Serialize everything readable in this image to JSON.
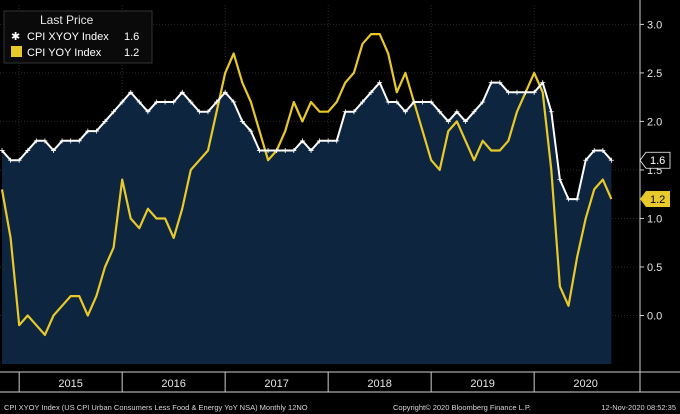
{
  "legend": {
    "title": "Last Price",
    "items": [
      {
        "name": "CPI XYOY Index",
        "value": "1.6"
      },
      {
        "name": "CPI YOY Index",
        "value": "1.2"
      }
    ]
  },
  "footer": {
    "source": "CPI XYOY Index (US CPI Urban Consumers Less Food & Energy YoY NSA)  Monthly 12NO",
    "copyright": "Copyright© 2020 Bloomberg Finance L.P.",
    "timestamp": "12-Nov-2020 08:52:35"
  },
  "chart_data": {
    "type": "line",
    "ylim": [
      -0.5,
      3.2
    ],
    "yticks": [
      "0.0",
      "0.5",
      "1.0",
      "1.5",
      "2.0",
      "2.5",
      "3.0"
    ],
    "xticks": [
      "2015",
      "2016",
      "2017",
      "2018",
      "2019",
      "2020"
    ],
    "series": [
      {
        "name": "CPI XYOY Index",
        "color": "#ffffff",
        "last_label": "1.6",
        "fill": "#0e2540",
        "x": [
          "2014-11",
          "2014-12",
          "2015-01",
          "2015-02",
          "2015-03",
          "2015-04",
          "2015-05",
          "2015-06",
          "2015-07",
          "2015-08",
          "2015-09",
          "2015-10",
          "2015-11",
          "2015-12",
          "2016-01",
          "2016-02",
          "2016-03",
          "2016-04",
          "2016-05",
          "2016-06",
          "2016-07",
          "2016-08",
          "2016-09",
          "2016-10",
          "2016-11",
          "2016-12",
          "2017-01",
          "2017-02",
          "2017-03",
          "2017-04",
          "2017-05",
          "2017-06",
          "2017-07",
          "2017-08",
          "2017-09",
          "2017-10",
          "2017-11",
          "2017-12",
          "2018-01",
          "2018-02",
          "2018-03",
          "2018-04",
          "2018-05",
          "2018-06",
          "2018-07",
          "2018-08",
          "2018-09",
          "2018-10",
          "2018-11",
          "2018-12",
          "2019-01",
          "2019-02",
          "2019-03",
          "2019-04",
          "2019-05",
          "2019-06",
          "2019-07",
          "2019-08",
          "2019-09",
          "2019-10",
          "2019-11",
          "2019-12",
          "2020-01",
          "2020-02",
          "2020-03",
          "2020-04",
          "2020-05",
          "2020-06",
          "2020-07",
          "2020-08",
          "2020-09",
          "2020-10"
        ],
        "values": [
          1.7,
          1.6,
          1.6,
          1.7,
          1.8,
          1.8,
          1.7,
          1.8,
          1.8,
          1.8,
          1.9,
          1.9,
          2.0,
          2.1,
          2.2,
          2.3,
          2.2,
          2.1,
          2.2,
          2.2,
          2.2,
          2.3,
          2.2,
          2.1,
          2.1,
          2.2,
          2.3,
          2.2,
          2.0,
          1.9,
          1.7,
          1.7,
          1.7,
          1.7,
          1.7,
          1.8,
          1.7,
          1.8,
          1.8,
          1.8,
          2.1,
          2.1,
          2.2,
          2.3,
          2.4,
          2.2,
          2.2,
          2.1,
          2.2,
          2.2,
          2.2,
          2.1,
          2.0,
          2.1,
          2.0,
          2.1,
          2.2,
          2.4,
          2.4,
          2.3,
          2.3,
          2.3,
          2.3,
          2.4,
          2.1,
          1.4,
          1.2,
          1.2,
          1.6,
          1.7,
          1.7,
          1.6
        ]
      },
      {
        "name": "CPI YOY Index",
        "color": "#e8c92a",
        "last_label": "1.2",
        "x": [
          "2014-11",
          "2014-12",
          "2015-01",
          "2015-02",
          "2015-03",
          "2015-04",
          "2015-05",
          "2015-06",
          "2015-07",
          "2015-08",
          "2015-09",
          "2015-10",
          "2015-11",
          "2015-12",
          "2016-01",
          "2016-02",
          "2016-03",
          "2016-04",
          "2016-05",
          "2016-06",
          "2016-07",
          "2016-08",
          "2016-09",
          "2016-10",
          "2016-11",
          "2016-12",
          "2017-01",
          "2017-02",
          "2017-03",
          "2017-04",
          "2017-05",
          "2017-06",
          "2017-07",
          "2017-08",
          "2017-09",
          "2017-10",
          "2017-11",
          "2017-12",
          "2018-01",
          "2018-02",
          "2018-03",
          "2018-04",
          "2018-05",
          "2018-06",
          "2018-07",
          "2018-08",
          "2018-09",
          "2018-10",
          "2018-11",
          "2018-12",
          "2019-01",
          "2019-02",
          "2019-03",
          "2019-04",
          "2019-05",
          "2019-06",
          "2019-07",
          "2019-08",
          "2019-09",
          "2019-10",
          "2019-11",
          "2019-12",
          "2020-01",
          "2020-02",
          "2020-03",
          "2020-04",
          "2020-05",
          "2020-06",
          "2020-07",
          "2020-08",
          "2020-09",
          "2020-10"
        ],
        "values": [
          1.3,
          0.8,
          -0.1,
          0.0,
          -0.1,
          -0.2,
          0.0,
          0.1,
          0.2,
          0.2,
          0.0,
          0.2,
          0.5,
          0.7,
          1.4,
          1.0,
          0.9,
          1.1,
          1.0,
          1.0,
          0.8,
          1.1,
          1.5,
          1.6,
          1.7,
          2.1,
          2.5,
          2.7,
          2.4,
          2.2,
          1.9,
          1.6,
          1.7,
          1.9,
          2.2,
          2.0,
          2.2,
          2.1,
          2.1,
          2.2,
          2.4,
          2.5,
          2.8,
          2.9,
          2.9,
          2.7,
          2.3,
          2.5,
          2.2,
          1.9,
          1.6,
          1.5,
          1.9,
          2.0,
          1.8,
          1.6,
          1.8,
          1.7,
          1.7,
          1.8,
          2.1,
          2.3,
          2.5,
          2.3,
          1.5,
          0.3,
          0.1,
          0.6,
          1.0,
          1.3,
          1.4,
          1.2
        ]
      }
    ]
  }
}
